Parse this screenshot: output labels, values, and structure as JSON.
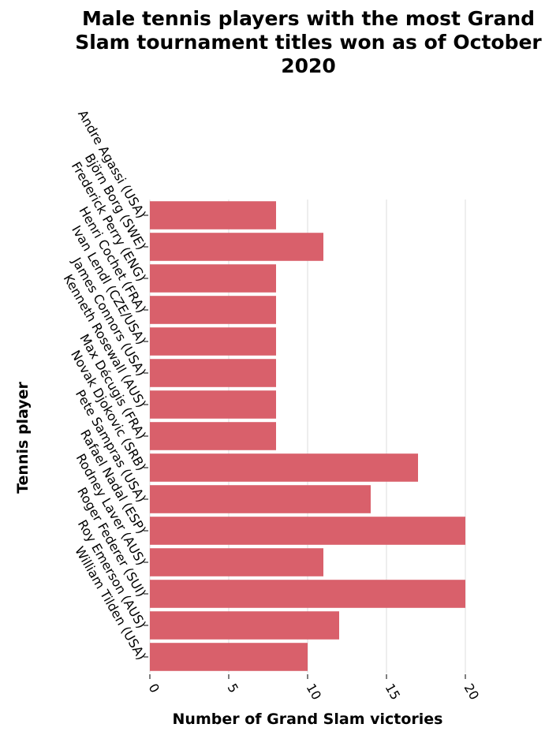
{
  "chart_data": {
    "type": "bar",
    "orientation": "horizontal",
    "title": "Male tennis players with the most Grand Slam tournament titles won as of October 2020",
    "title_lines": [
      "Male tennis players with the most Grand",
      "Slam tournament titles won as of October",
      "2020"
    ],
    "xlabel": "Number of Grand Slam victories",
    "ylabel": "Tennis player",
    "xlim": [
      0,
      20
    ],
    "xticks": [
      0,
      5,
      10,
      15,
      20
    ],
    "grid": true,
    "legend": "none",
    "bar_color": "#d9606b",
    "categories": [
      "Andre Agassi (USA)",
      "Björn Borg (SWE)",
      "Frederick Perry (ENG)",
      "Henri Cochet (FRA)",
      "Ivan Lendl (CZE/USA)",
      "James Connors (USA)",
      "Kenneth Rosewall (AUS)",
      "Max Décugis (FRA)",
      "Novak Djokovic (SRB)",
      "Pete Sampras (USA)",
      "Rafael Nadal (ESP)",
      "Rodney Laver (AUS)",
      "Roger Federer (SUI)",
      "Roy Emerson (AUS)",
      "William Tilden (USA)"
    ],
    "values": [
      8,
      11,
      8,
      8,
      8,
      8,
      8,
      8,
      17,
      14,
      20,
      11,
      20,
      12,
      10
    ]
  }
}
